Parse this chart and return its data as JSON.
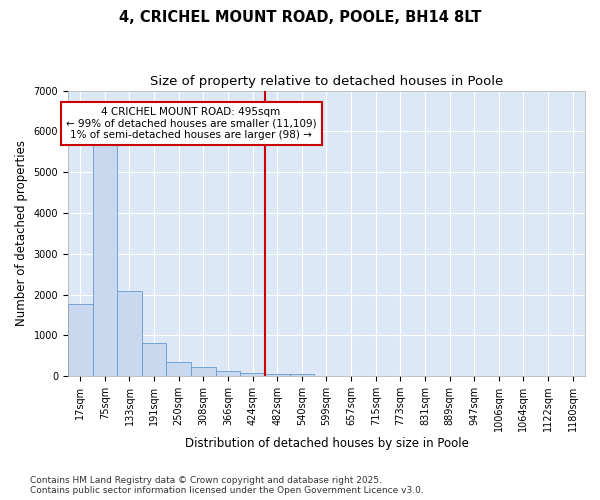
{
  "title1": "4, CRICHEL MOUNT ROAD, POOLE, BH14 8LT",
  "title2": "Size of property relative to detached houses in Poole",
  "xlabel": "Distribution of detached houses by size in Poole",
  "ylabel": "Number of detached properties",
  "categories": [
    "17sqm",
    "75sqm",
    "133sqm",
    "191sqm",
    "250sqm",
    "308sqm",
    "366sqm",
    "424sqm",
    "482sqm",
    "540sqm",
    "599sqm",
    "657sqm",
    "715sqm",
    "773sqm",
    "831sqm",
    "889sqm",
    "947sqm",
    "1006sqm",
    "1064sqm",
    "1122sqm",
    "1180sqm"
  ],
  "values": [
    1780,
    5820,
    2090,
    820,
    360,
    215,
    120,
    90,
    60,
    45,
    0,
    0,
    0,
    0,
    0,
    0,
    0,
    0,
    0,
    0,
    0
  ],
  "bar_color": "#c8d8ee",
  "bar_edge_color": "#6699cc",
  "vline_idx": 8,
  "vline_color": "#cc0000",
  "annotation_text": "4 CRICHEL MOUNT ROAD: 495sqm\n← 99% of detached houses are smaller (11,109)\n1% of semi-detached houses are larger (98) →",
  "annotation_box_edgecolor": "#cc0000",
  "ylim": [
    0,
    7000
  ],
  "yticks": [
    0,
    1000,
    2000,
    3000,
    4000,
    5000,
    6000,
    7000
  ],
  "fig_background": "#ffffff",
  "plot_background": "#dce8f5",
  "grid_color": "#ffffff",
  "footer": "Contains HM Land Registry data © Crown copyright and database right 2025.\nContains public sector information licensed under the Open Government Licence v3.0.",
  "title_fontsize": 10.5,
  "subtitle_fontsize": 9.5,
  "axis_label_fontsize": 8.5,
  "tick_fontsize": 7,
  "annot_fontsize": 7.5,
  "footer_fontsize": 6.5
}
